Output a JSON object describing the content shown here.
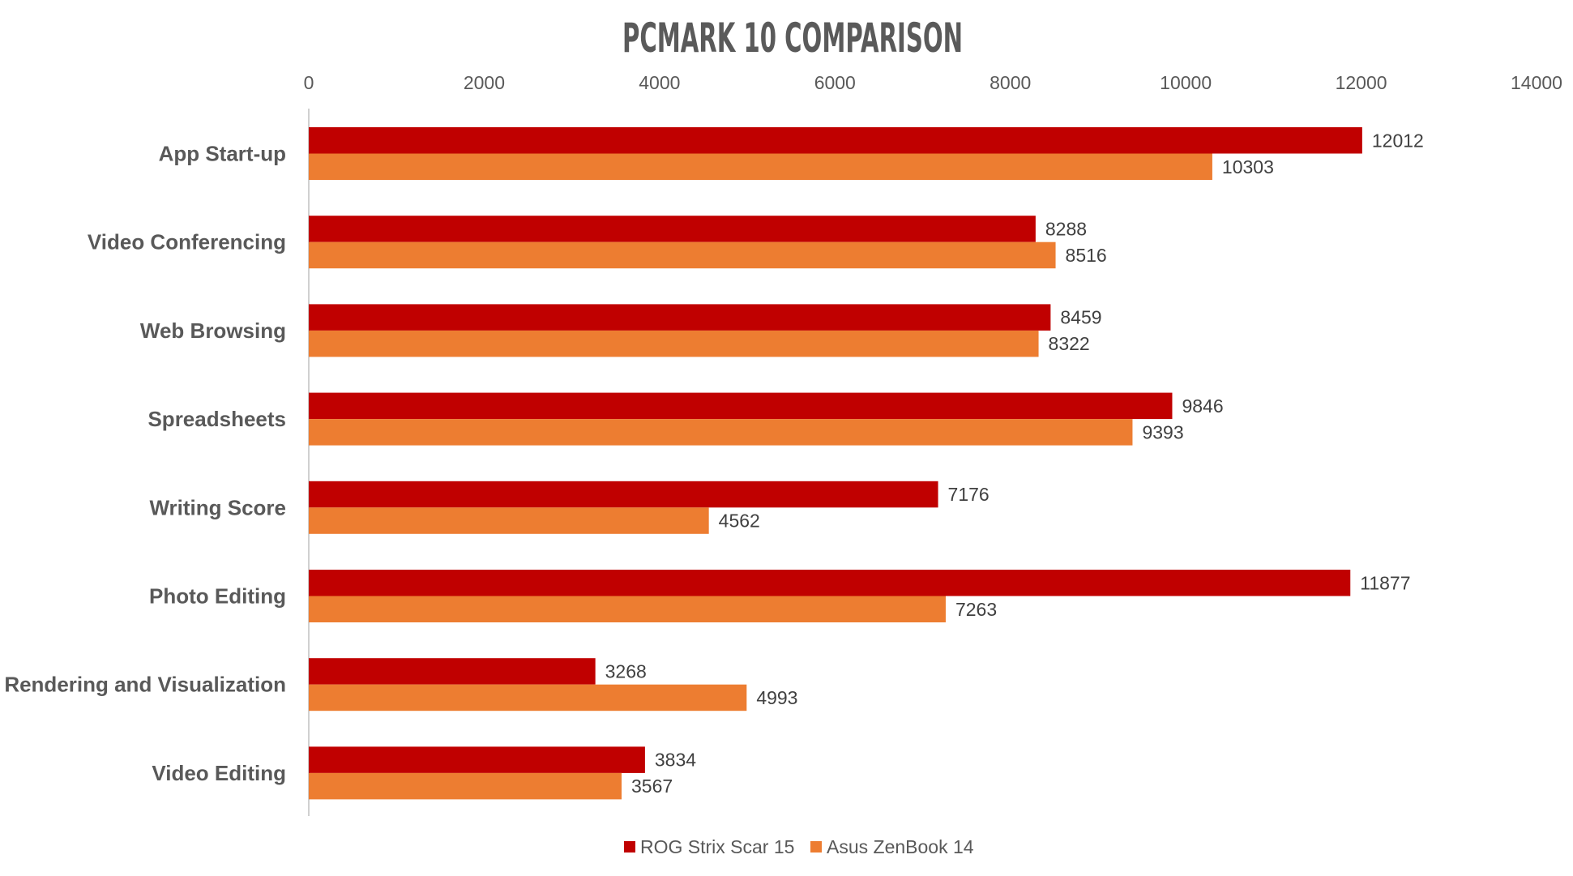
{
  "chart_data": {
    "type": "bar",
    "orientation": "horizontal",
    "title": "PCMARK 10 COMPARISON",
    "xlabel": "",
    "ylabel": "",
    "xlim": [
      0,
      14000
    ],
    "x_ticks": [
      0,
      2000,
      4000,
      6000,
      8000,
      10000,
      12000,
      14000
    ],
    "x_tick_labels": [
      "0",
      "2000",
      "4000",
      "6000",
      "8000",
      "10000",
      "12000",
      "14000"
    ],
    "axis_position": "top",
    "grid": false,
    "legend_position": "bottom",
    "categories": [
      "App Start-up",
      "Video Conferencing",
      "Web Browsing",
      "Spreadsheets",
      "Writing Score",
      "Photo Editing",
      "Rendering and Visualization",
      "Video Editing"
    ],
    "series": [
      {
        "name": "ROG Strix Scar 15",
        "color": "#c00000",
        "values": [
          12012,
          8288,
          8459,
          9846,
          7176,
          11877,
          3268,
          3834
        ],
        "labels": [
          "12012",
          "8288",
          "8459",
          "9846",
          "7176",
          "11877",
          "3268",
          "3834"
        ]
      },
      {
        "name": "Asus ZenBook 14",
        "color": "#ed7d31",
        "values": [
          10303,
          8516,
          8322,
          9393,
          4562,
          7263,
          4993,
          3567
        ],
        "labels": [
          "10303",
          "8516",
          "8322",
          "9393",
          "4562",
          "7263",
          "4993",
          "3567"
        ]
      }
    ]
  }
}
